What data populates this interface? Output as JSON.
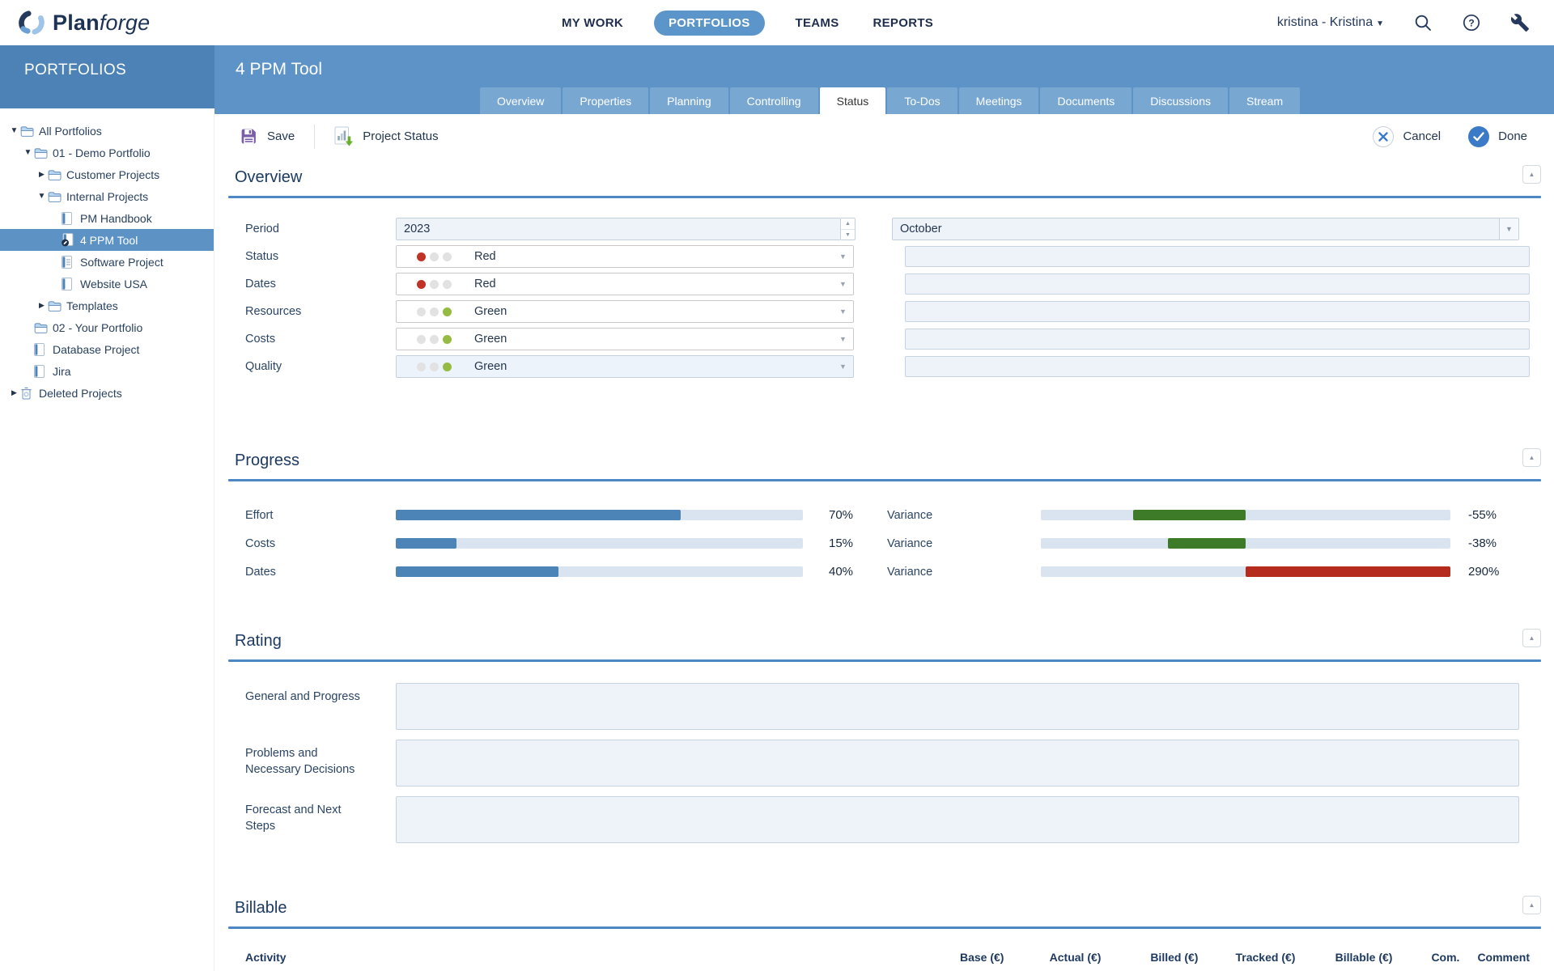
{
  "topbar": {
    "brand": "Planforge",
    "nav": [
      {
        "label": "MY WORK",
        "active": false
      },
      {
        "label": "PORTFOLIOS",
        "active": true
      },
      {
        "label": "TEAMS",
        "active": false
      },
      {
        "label": "REPORTS",
        "active": false
      }
    ],
    "user": "kristina - Kristina"
  },
  "sidebar": {
    "title": "PORTFOLIOS",
    "tree": [
      {
        "label": "All Portfolios",
        "level": 0,
        "expander": "open",
        "icon": "folder",
        "selected": false
      },
      {
        "label": "01 - Demo Portfolio",
        "level": 1,
        "expander": "open",
        "icon": "folder",
        "selected": false
      },
      {
        "label": "Customer Projects",
        "level": 2,
        "expander": "closed",
        "icon": "folder",
        "selected": false
      },
      {
        "label": "Internal Projects",
        "level": 2,
        "expander": "open",
        "icon": "folder",
        "selected": false
      },
      {
        "label": "PM Handbook",
        "level": 3,
        "expander": "none",
        "icon": "project",
        "selected": false
      },
      {
        "label": "4 PPM Tool",
        "level": 3,
        "expander": "none",
        "icon": "project-edit",
        "selected": true
      },
      {
        "label": "Software Project",
        "level": 3,
        "expander": "none",
        "icon": "project-list",
        "selected": false
      },
      {
        "label": "Website USA",
        "level": 3,
        "expander": "none",
        "icon": "project",
        "selected": false
      },
      {
        "label": "Templates",
        "level": 2,
        "expander": "closed",
        "icon": "folder",
        "selected": false
      },
      {
        "label": "02 - Your Portfolio",
        "level": 1,
        "expander": "none",
        "icon": "folder",
        "selected": false
      },
      {
        "label": "Database Project",
        "level": 1,
        "expander": "none",
        "icon": "project",
        "selected": false
      },
      {
        "label": "Jira",
        "level": 1,
        "expander": "none",
        "icon": "project",
        "selected": false
      },
      {
        "label": "Deleted Projects",
        "level": 0,
        "expander": "closed",
        "icon": "trash",
        "selected": false
      }
    ]
  },
  "header": {
    "title": "4 PPM Tool",
    "tabs": [
      {
        "label": "Overview",
        "active": false
      },
      {
        "label": "Properties",
        "active": false
      },
      {
        "label": "Planning",
        "active": false
      },
      {
        "label": "Controlling",
        "active": false
      },
      {
        "label": "Status",
        "active": true
      },
      {
        "label": "To-Dos",
        "active": false
      },
      {
        "label": "Meetings",
        "active": false
      },
      {
        "label": "Documents",
        "active": false
      },
      {
        "label": "Discussions",
        "active": false
      },
      {
        "label": "Stream",
        "active": false
      }
    ]
  },
  "toolbar": {
    "save_label": "Save",
    "project_status_label": "Project Status",
    "cancel_label": "Cancel",
    "done_label": "Done"
  },
  "overview": {
    "title": "Overview",
    "period_label": "Period",
    "period_value": "2023",
    "month_value": "October",
    "status_rows": [
      {
        "label": "Status",
        "value": "Red",
        "color": "red",
        "tinted": false
      },
      {
        "label": "Dates",
        "value": "Red",
        "color": "red",
        "tinted": false
      },
      {
        "label": "Resources",
        "value": "Green",
        "color": "green",
        "tinted": false
      },
      {
        "label": "Costs",
        "value": "Green",
        "color": "green",
        "tinted": false
      },
      {
        "label": "Quality",
        "value": "Green",
        "color": "green",
        "tinted": true
      }
    ]
  },
  "progress": {
    "title": "Progress",
    "rows": [
      {
        "label": "Effort",
        "percent": 70,
        "display": "70%",
        "variance_label": "Variance",
        "variance_percent": -55,
        "variance_display": "-55%"
      },
      {
        "label": "Costs",
        "percent": 15,
        "display": "15%",
        "variance_label": "Variance",
        "variance_percent": -38,
        "variance_display": "-38%"
      },
      {
        "label": "Dates",
        "percent": 40,
        "display": "40%",
        "variance_label": "Variance",
        "variance_percent": 290,
        "variance_display": "290%"
      }
    ]
  },
  "rating": {
    "title": "Rating",
    "fields": [
      {
        "label": "General and Progress",
        "value": ""
      },
      {
        "label": "Problems and Necessary Decisions",
        "value": ""
      },
      {
        "label": "Forecast and Next Steps",
        "value": ""
      }
    ]
  },
  "billable": {
    "title": "Billable",
    "columns": [
      "Activity",
      "Base (€)",
      "Actual (€)",
      "Billed (€)",
      "Tracked (€)",
      "Billable (€)",
      "Com.",
      "Comment"
    ]
  },
  "colors": {
    "header_blue": "#5d93c6",
    "sidebar_header_blue": "#4c82b5",
    "accent_blue": "#4c87c6",
    "status_red": "#c13327",
    "status_green": "#95bb43",
    "bar_blue": "#4d84b8",
    "variance_green": "#3e7b28",
    "variance_red": "#b52c1e",
    "save_purple": "#7b5ca8"
  }
}
